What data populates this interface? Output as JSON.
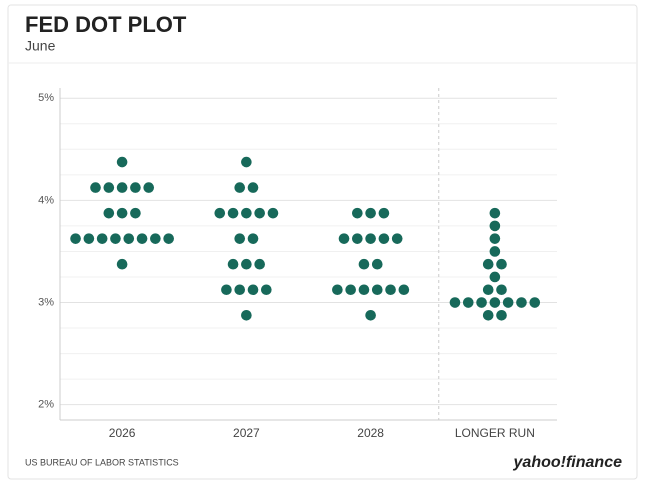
{
  "chart_data": {
    "type": "dot",
    "title": "FED DOT PLOT",
    "subtitle": "June",
    "source": "US BUREAU OF LABOR STATISTICS",
    "brand": "yahoo!finance",
    "color": "#17695a",
    "categories": [
      "2026",
      "2027",
      "2028",
      "LONGER RUN"
    ],
    "values": [
      [
        4.375,
        4.125,
        4.125,
        4.125,
        4.125,
        4.125,
        3.875,
        3.875,
        3.875,
        3.625,
        3.625,
        3.625,
        3.625,
        3.625,
        3.625,
        3.625,
        3.625,
        3.375
      ],
      [
        4.375,
        4.125,
        4.125,
        3.875,
        3.875,
        3.875,
        3.875,
        3.875,
        3.625,
        3.625,
        3.375,
        3.375,
        3.375,
        3.125,
        3.125,
        3.125,
        3.125,
        2.875
      ],
      [
        3.875,
        3.875,
        3.875,
        3.625,
        3.625,
        3.625,
        3.625,
        3.625,
        3.375,
        3.375,
        3.125,
        3.125,
        3.125,
        3.125,
        3.125,
        3.125,
        2.875
      ],
      [
        3.875,
        3.75,
        3.625,
        3.5,
        3.375,
        3.375,
        3.25,
        3.125,
        3.125,
        3.0,
        3.0,
        3.0,
        3.0,
        3.0,
        3.0,
        3.0,
        2.875,
        2.875
      ]
    ],
    "ylim": [
      1.85,
      5.1
    ],
    "yticks": [
      {
        "value": 2,
        "label": "2%"
      },
      {
        "value": 3,
        "label": "3%"
      },
      {
        "value": 4,
        "label": "4%"
      },
      {
        "value": 5,
        "label": "5%"
      }
    ],
    "minor_yticks": [
      2.25,
      2.5,
      2.75,
      3.25,
      3.5,
      3.75,
      4.25,
      4.5,
      4.75
    ],
    "grid": true
  }
}
